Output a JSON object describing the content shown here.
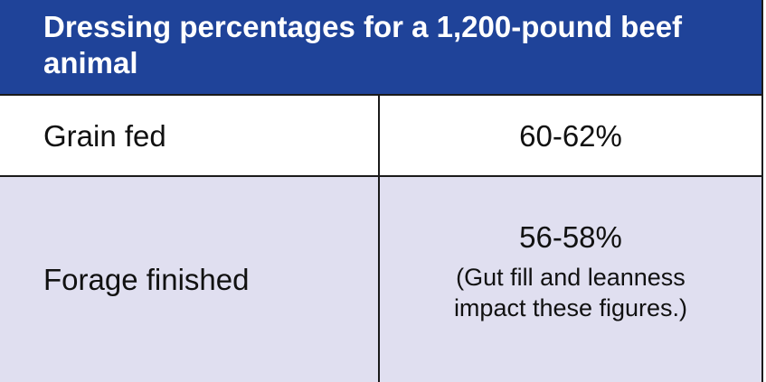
{
  "title": "Dressing percentages for a 1,200-pound beef animal",
  "rows": [
    {
      "label": "Grain fed",
      "value": "60-62%",
      "note": ""
    },
    {
      "label": "Forage finished",
      "value": "56-58%",
      "note": "(Gut fill and leanness impact these figures.)"
    }
  ],
  "colors": {
    "header_bg": "#1f4399",
    "row_alt_bg": "#e0dff0"
  }
}
